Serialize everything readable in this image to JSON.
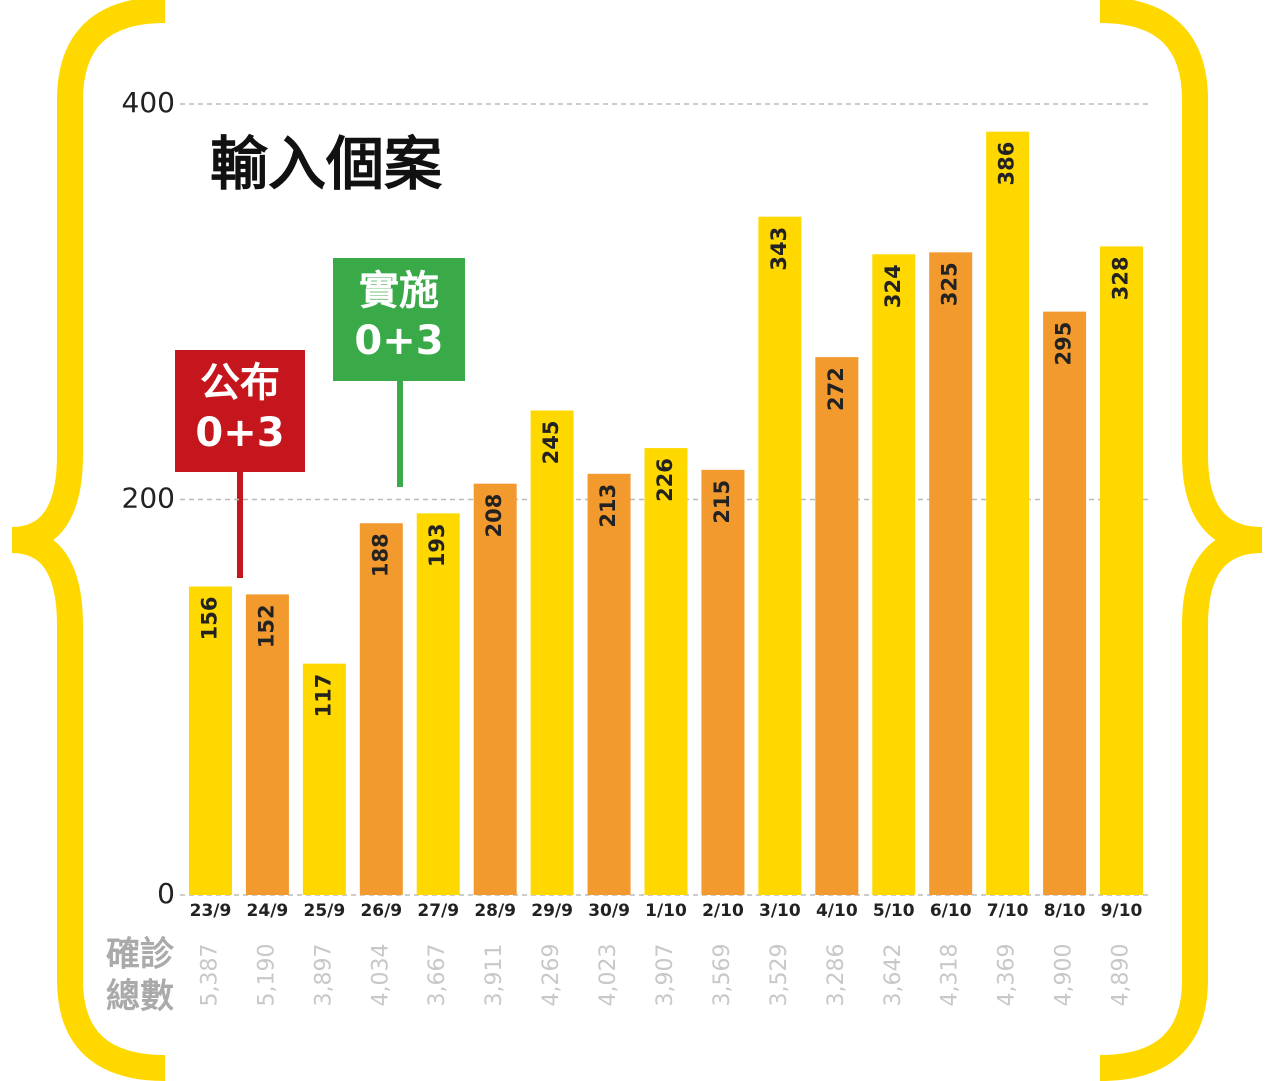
{
  "chart_data": {
    "type": "bar",
    "title": "輸入個案",
    "categories": [
      "23/9",
      "24/9",
      "25/9",
      "26/9",
      "27/9",
      "28/9",
      "29/9",
      "30/9",
      "1/10",
      "2/10",
      "3/10",
      "4/10",
      "5/10",
      "6/10",
      "7/10",
      "8/10",
      "9/10"
    ],
    "values": [
      156,
      152,
      117,
      188,
      193,
      208,
      245,
      213,
      226,
      215,
      343,
      272,
      324,
      325,
      386,
      295,
      328
    ],
    "colors": [
      "#ffd800",
      "#f39a2e",
      "#ffd800",
      "#f39a2e",
      "#ffd800",
      "#f39a2e",
      "#ffd800",
      "#f39a2e",
      "#ffd800",
      "#f39a2e",
      "#ffd800",
      "#f39a2e",
      "#ffd800",
      "#f39a2e",
      "#ffd800",
      "#f39a2e",
      "#ffd800"
    ],
    "ylim": [
      0,
      400
    ],
    "yticks": [
      0,
      200,
      400
    ],
    "grid": true,
    "totals": {
      "label": [
        "確診",
        "總數"
      ],
      "values": [
        "5,387",
        "5,190",
        "3,897",
        "4,034",
        "3,667",
        "3,911",
        "4,269",
        "4,023",
        "3,907",
        "3,569",
        "3,529",
        "3,286",
        "3,642",
        "4,318",
        "4,369",
        "4,900",
        "4,890"
      ]
    },
    "annotations": [
      {
        "lines": [
          "公布",
          "0+3"
        ],
        "color": "#c4161c"
      },
      {
        "lines": [
          "實施",
          "0+3"
        ],
        "color": "#3aaa48"
      }
    ]
  }
}
